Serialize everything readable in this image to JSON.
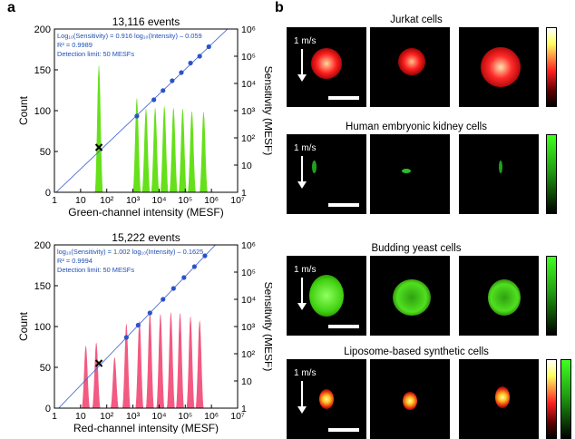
{
  "panels": {
    "a": "a",
    "b": "b"
  },
  "chart_data": [
    {
      "type": "bar",
      "title": "13,116 events",
      "xlabel": "Green-channel intensity (MESF)",
      "ylabel": "Count",
      "y2label": "Sensitivity (MESF)",
      "x_ticks": [
        "1",
        "10",
        "10²",
        "10³",
        "10⁴",
        "10⁵",
        "10⁶",
        "10⁷"
      ],
      "y_ticks": [
        "0",
        "50",
        "100",
        "150",
        "200"
      ],
      "y2_ticks": [
        "1",
        "10",
        "10²",
        "10³",
        "10⁴",
        "10⁵",
        "10⁶"
      ],
      "xlim_log10": [
        0,
        7
      ],
      "ylim": [
        0,
        200
      ],
      "y2lim_log10": [
        0,
        6
      ],
      "color": "#66e01a",
      "peaks": [
        {
          "log10_x": 1.7,
          "height": 155
        },
        {
          "log10_x": 3.15,
          "height": 115
        },
        {
          "log10_x": 3.5,
          "height": 102
        },
        {
          "log10_x": 3.85,
          "height": 103
        },
        {
          "log10_x": 4.2,
          "height": 105
        },
        {
          "log10_x": 4.55,
          "height": 103
        },
        {
          "log10_x": 4.9,
          "height": 102
        },
        {
          "log10_x": 5.25,
          "height": 99
        },
        {
          "log10_x": 5.7,
          "height": 98
        }
      ],
      "fit_points_log10": [
        [
          3.15,
          2.8
        ],
        [
          3.8,
          3.4
        ],
        [
          4.15,
          3.74
        ],
        [
          4.5,
          4.1
        ],
        [
          4.85,
          4.4
        ],
        [
          5.2,
          4.75
        ],
        [
          5.55,
          5.0
        ],
        [
          5.9,
          5.35
        ]
      ],
      "fit_line_log10": [
        [
          0,
          -0.059
        ],
        [
          7,
          6.353
        ]
      ],
      "detection_point": {
        "log10_x": 1.7,
        "count": 55
      },
      "annotations": [
        "Log₁₀(Sensitivity) = 0.916 log₁₀(Intensity) – 0.059",
        "R² = 0.9989",
        "Detection limit: 50 MESFs"
      ],
      "annotation_color": "#1f4fb4"
    },
    {
      "type": "bar",
      "title": "15,222 events",
      "xlabel": "Red-channel intensity (MESF)",
      "ylabel": "Count",
      "y2label": "Sensitivity (MESF)",
      "x_ticks": [
        "1",
        "10",
        "10²",
        "10³",
        "10⁴",
        "10⁵",
        "10⁶",
        "10⁷"
      ],
      "y_ticks": [
        "0",
        "50",
        "100",
        "150",
        "200"
      ],
      "y2_ticks": [
        "1",
        "10",
        "10²",
        "10³",
        "10⁴",
        "10⁵",
        "10⁶"
      ],
      "xlim_log10": [
        0,
        7
      ],
      "ylim": [
        0,
        200
      ],
      "y2lim_log10": [
        0,
        6
      ],
      "color": "#f25a82",
      "peaks": [
        {
          "log10_x": 1.2,
          "height": 76
        },
        {
          "log10_x": 1.6,
          "height": 80
        },
        {
          "log10_x": 2.3,
          "height": 62
        },
        {
          "log10_x": 2.75,
          "height": 103
        },
        {
          "log10_x": 3.25,
          "height": 107
        },
        {
          "log10_x": 3.65,
          "height": 117
        },
        {
          "log10_x": 4.05,
          "height": 115
        },
        {
          "log10_x": 4.45,
          "height": 117
        },
        {
          "log10_x": 4.8,
          "height": 116
        },
        {
          "log10_x": 5.2,
          "height": 112
        },
        {
          "log10_x": 5.55,
          "height": 107
        }
      ],
      "fit_points_log10": [
        [
          2.75,
          2.6
        ],
        [
          3.2,
          3.05
        ],
        [
          3.65,
          3.5
        ],
        [
          4.15,
          4.0
        ],
        [
          4.55,
          4.4
        ],
        [
          4.95,
          4.8
        ],
        [
          5.35,
          5.2
        ],
        [
          5.75,
          5.6
        ]
      ],
      "fit_line_log10": [
        [
          0,
          -0.1625
        ],
        [
          7,
          6.8515
        ]
      ],
      "detection_point": {
        "log10_x": 1.7,
        "count": 55
      },
      "annotations": [
        "log₁₀(Sensitivity) = 1.002 log₁₀(Intensity) – 0.1625",
        "R² = 0.9994",
        "Detection limit: 50 MESFs"
      ],
      "annotation_color": "#1f4fb4"
    }
  ],
  "rows": [
    {
      "title": "Jurkat cells",
      "speed": "1 m/s",
      "palette": "red-yellow",
      "colorbars": 1
    },
    {
      "title": "Human embryonic kidney cells",
      "speed": "1 m/s",
      "palette": "green",
      "colorbars": 1
    },
    {
      "title": "Budding yeast cells",
      "speed": "1 m/s",
      "palette": "green",
      "colorbars": 1
    },
    {
      "title": "Liposome-based synthetic cells",
      "speed": "1 m/s",
      "palette": "red-yellow",
      "colorbars": 2
    }
  ]
}
